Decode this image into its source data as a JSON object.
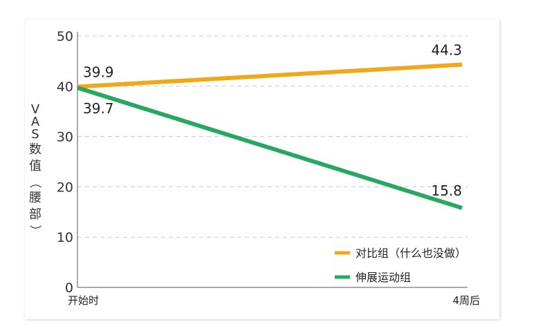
{
  "chart_data": {
    "type": "line",
    "x": [
      "开始时",
      "4周后"
    ],
    "ylabel": "VAS数值（腰部）",
    "ylim": [
      0,
      50
    ],
    "yticks": [
      0,
      10,
      20,
      30,
      40,
      50
    ],
    "grid": true,
    "legend_position": "bottom-right",
    "series": [
      {
        "name": "对比组（什么也没做）",
        "values": [
          39.9,
          44.3
        ],
        "color": "#f0a818"
      },
      {
        "name": "伸展运动组",
        "values": [
          39.7,
          15.8
        ],
        "color": "#27a862"
      }
    ]
  }
}
